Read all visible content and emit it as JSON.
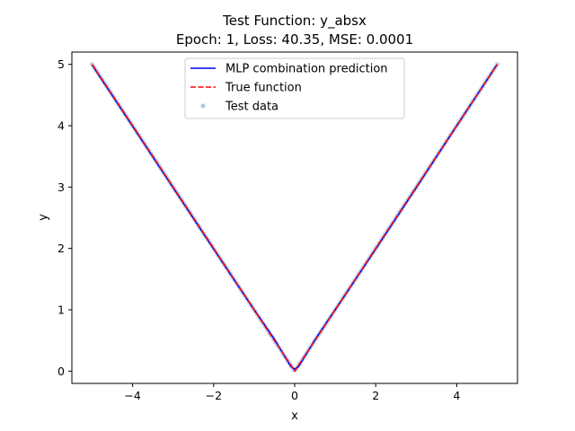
{
  "chart_data": {
    "type": "line",
    "title": "Test Function: y_absx",
    "subtitle": "Epoch: 1, Loss: 40.35, MSE: 0.0001",
    "xlabel": "x",
    "ylabel": "y",
    "xlim": [
      -5.5,
      5.5
    ],
    "ylim": [
      -0.2,
      5.2
    ],
    "xticks": [
      -4,
      -2,
      0,
      2,
      4
    ],
    "xtick_labels": [
      "−4",
      "−2",
      "0",
      "2",
      "4"
    ],
    "yticks": [
      0,
      1,
      2,
      3,
      4,
      5
    ],
    "ytick_labels": [
      "0",
      "1",
      "2",
      "3",
      "4",
      "5"
    ],
    "grid": false,
    "legend_position": "top-center",
    "series": [
      {
        "name": "MLP combination prediction",
        "style": "solid",
        "color": "#0000ff",
        "x": [
          -5,
          -4,
          -3,
          -2,
          -1,
          -0.5,
          -0.1,
          0,
          0.1,
          0.5,
          1,
          2,
          3,
          4,
          5
        ],
        "y": [
          4.99,
          3.99,
          2.99,
          1.99,
          1.0,
          0.52,
          0.08,
          0.03,
          0.08,
          0.51,
          1.0,
          1.99,
          2.99,
          4.0,
          5.0
        ]
      },
      {
        "name": "True function",
        "style": "dashed",
        "color": "#ff0000",
        "x": [
          -5,
          0,
          5
        ],
        "y": [
          5,
          0,
          5
        ]
      },
      {
        "name": "Test data",
        "style": "scatter",
        "color": "#7fb2d9",
        "x_range": [
          -5,
          5
        ],
        "y_rule": "abs(x)",
        "n_points": 200
      }
    ]
  }
}
